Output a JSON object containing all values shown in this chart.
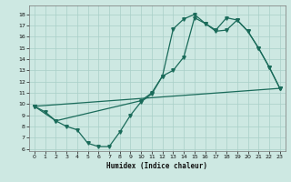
{
  "xlabel": "Humidex (Indice chaleur)",
  "xlim": [
    -0.5,
    23.5
  ],
  "ylim": [
    5.8,
    18.8
  ],
  "yticks": [
    6,
    7,
    8,
    9,
    10,
    11,
    12,
    13,
    14,
    15,
    16,
    17,
    18
  ],
  "xticks": [
    0,
    1,
    2,
    3,
    4,
    5,
    6,
    7,
    8,
    9,
    10,
    11,
    12,
    13,
    14,
    15,
    16,
    17,
    18,
    19,
    20,
    21,
    22,
    23
  ],
  "bg_color": "#cde8e2",
  "grid_color": "#a8cfc8",
  "line_color": "#1a6b5a",
  "line1_x": [
    0,
    1,
    2,
    3,
    4,
    5,
    6,
    7,
    8,
    9,
    10,
    11,
    12,
    13,
    14,
    15,
    16,
    17,
    18,
    19,
    20,
    21,
    22,
    23
  ],
  "line1_y": [
    9.8,
    9.3,
    8.5,
    8.0,
    7.7,
    6.5,
    6.2,
    6.2,
    7.5,
    9.0,
    10.2,
    10.9,
    12.5,
    16.7,
    17.6,
    18.0,
    17.2,
    16.6,
    17.7,
    17.5,
    16.5,
    15.0,
    13.3,
    11.4
  ],
  "line2_x": [
    0,
    2,
    10,
    11,
    12,
    13,
    14,
    15,
    16,
    17,
    18,
    19,
    20,
    21,
    22,
    23
  ],
  "line2_y": [
    9.8,
    8.5,
    10.3,
    11.0,
    12.5,
    13.0,
    14.2,
    17.7,
    17.2,
    16.5,
    16.6,
    17.5,
    16.5,
    15.0,
    13.3,
    11.4
  ],
  "line3_x": [
    0,
    23
  ],
  "line3_y": [
    9.8,
    11.4
  ]
}
